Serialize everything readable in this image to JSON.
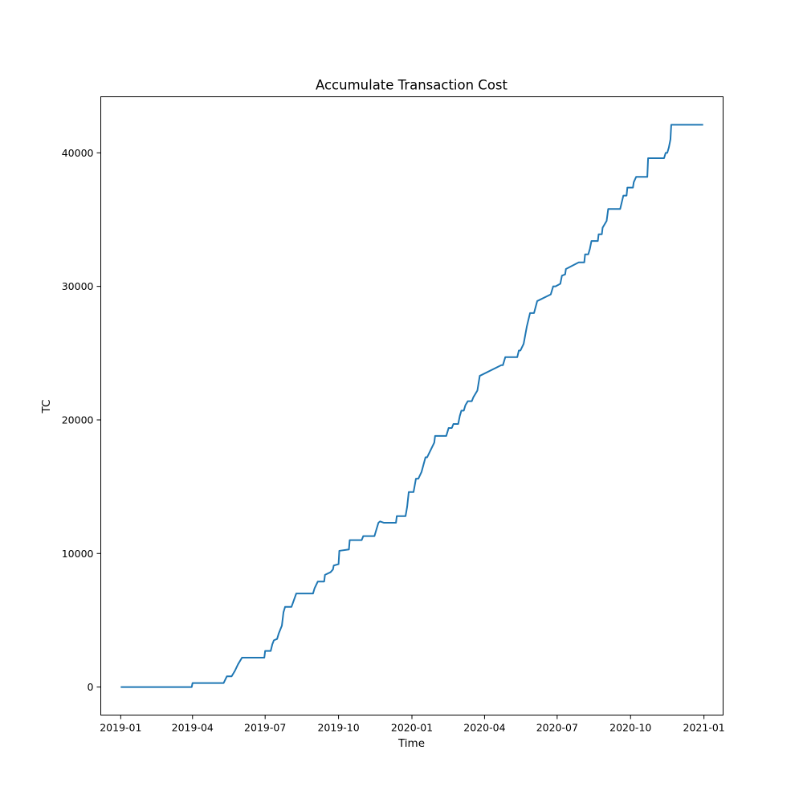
{
  "chart_data": {
    "type": "line",
    "title": "Accumulate Transaction Cost",
    "xlabel": "Time",
    "ylabel": "TC",
    "x_ticks": [
      {
        "date": "2019-01-01",
        "label": "2019-01"
      },
      {
        "date": "2019-04-01",
        "label": "2019-04"
      },
      {
        "date": "2019-07-01",
        "label": "2019-07"
      },
      {
        "date": "2019-10-01",
        "label": "2019-10"
      },
      {
        "date": "2020-01-01",
        "label": "2020-01"
      },
      {
        "date": "2020-04-01",
        "label": "2020-04"
      },
      {
        "date": "2020-07-01",
        "label": "2020-07"
      },
      {
        "date": "2020-10-01",
        "label": "2020-10"
      },
      {
        "date": "2021-01-01",
        "label": "2021-01"
      }
    ],
    "y_ticks": [
      {
        "value": 0,
        "label": "0"
      },
      {
        "value": 10000,
        "label": "10000"
      },
      {
        "value": 20000,
        "label": "20000"
      },
      {
        "value": 30000,
        "label": "30000"
      },
      {
        "value": 40000,
        "label": "40000"
      }
    ],
    "xlim": [
      "2018-12-07",
      "2021-01-25"
    ],
    "ylim": [
      -2100,
      44200
    ],
    "grid": false,
    "series": [
      {
        "name": "TC",
        "color": "#1f77b4",
        "x": [
          "2019-01-01",
          "2019-03-31",
          "2019-04-01",
          "2019-05-10",
          "2019-05-14",
          "2019-05-20",
          "2019-05-24",
          "2019-05-28",
          "2019-06-02",
          "2019-06-30",
          "2019-07-01",
          "2019-07-08",
          "2019-07-10",
          "2019-07-12",
          "2019-07-16",
          "2019-07-18",
          "2019-07-22",
          "2019-07-24",
          "2019-07-26",
          "2019-08-03",
          "2019-08-06",
          "2019-08-09",
          "2019-08-30",
          "2019-09-01",
          "2019-09-05",
          "2019-09-13",
          "2019-09-14",
          "2019-09-21",
          "2019-09-24",
          "2019-09-25",
          "2019-10-01",
          "2019-10-02",
          "2019-10-14",
          "2019-10-15",
          "2019-10-30",
          "2019-11-01",
          "2019-11-15",
          "2019-11-20",
          "2019-11-22",
          "2019-11-27",
          "2019-12-12",
          "2019-12-13",
          "2019-12-24",
          "2019-12-26",
          "2019-12-28",
          "2020-01-03",
          "2020-01-06",
          "2020-01-09",
          "2020-01-13",
          "2020-01-18",
          "2020-01-20",
          "2020-01-29",
          "2020-01-30",
          "2020-02-13",
          "2020-02-16",
          "2020-02-17",
          "2020-02-20",
          "2020-02-22",
          "2020-02-25",
          "2020-02-28",
          "2020-03-01",
          "2020-03-03",
          "2020-03-06",
          "2020-03-08",
          "2020-03-11",
          "2020-03-16",
          "2020-03-18",
          "2020-03-23",
          "2020-03-26",
          "2020-04-22",
          "2020-04-24",
          "2020-04-27",
          "2020-05-12",
          "2020-05-14",
          "2020-05-16",
          "2020-05-20",
          "2020-05-24",
          "2020-05-28",
          "2020-05-30",
          "2020-06-02",
          "2020-06-06",
          "2020-06-23",
          "2020-06-26",
          "2020-06-29",
          "2020-07-05",
          "2020-07-07",
          "2020-07-11",
          "2020-07-12",
          "2020-07-28",
          "2020-08-04",
          "2020-08-05",
          "2020-08-09",
          "2020-08-11",
          "2020-08-13",
          "2020-08-21",
          "2020-08-22",
          "2020-08-26",
          "2020-08-27",
          "2020-09-01",
          "2020-09-03",
          "2020-09-16",
          "2020-09-18",
          "2020-09-22",
          "2020-09-26",
          "2020-09-27",
          "2020-10-04",
          "2020-10-05",
          "2020-10-08",
          "2020-10-09",
          "2020-10-22",
          "2020-10-23",
          "2020-11-11",
          "2020-11-12",
          "2020-11-14",
          "2020-11-16",
          "2020-11-18",
          "2020-11-20",
          "2020-11-21",
          "2020-11-24",
          "2020-11-26",
          "2020-11-28",
          "2020-11-30",
          "2020-12-31"
        ],
        "values": [
          0,
          0,
          300,
          300,
          800,
          800,
          1200,
          1700,
          2200,
          2200,
          2700,
          2700,
          3200,
          3500,
          3600,
          4000,
          4600,
          5600,
          6000,
          6000,
          6500,
          7000,
          7000,
          7400,
          7900,
          7900,
          8400,
          8600,
          8800,
          9100,
          9200,
          10200,
          10300,
          11000,
          11000,
          11300,
          11300,
          12300,
          12400,
          12300,
          12300,
          12800,
          12800,
          13500,
          14600,
          14600,
          15600,
          15600,
          16100,
          17200,
          17200,
          18300,
          18800,
          18800,
          19400,
          19400,
          19400,
          19700,
          19700,
          19700,
          20300,
          20700,
          20700,
          21100,
          21400,
          21400,
          21700,
          22200,
          23300,
          24100,
          24100,
          24700,
          24700,
          25200,
          25200,
          25700,
          27000,
          28000,
          28000,
          28000,
          28900,
          29400,
          30000,
          30000,
          30200,
          30800,
          30900,
          31300,
          31800,
          31800,
          32400,
          32400,
          32800,
          33400,
          33400,
          33900,
          33900,
          34400,
          34900,
          35800,
          35800,
          35800,
          36800,
          36800,
          37400,
          37400,
          37800,
          38200,
          38200,
          38200,
          39600,
          39600,
          39600,
          40000,
          40000,
          40400,
          41000,
          42100,
          42100,
          42100,
          42100,
          42100,
          42100
        ]
      }
    ]
  }
}
